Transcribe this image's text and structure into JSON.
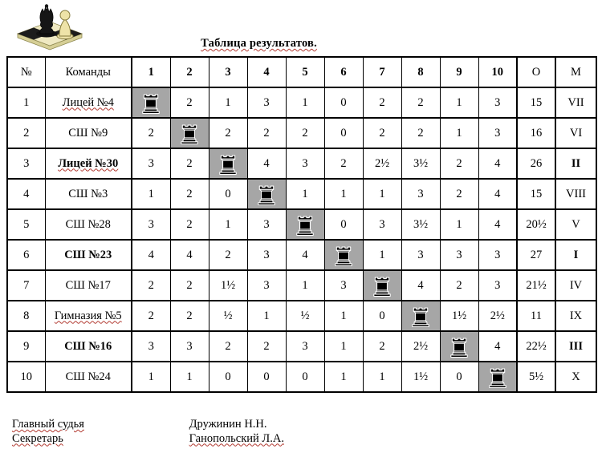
{
  "title": "Таблица результатов.",
  "logo": {
    "description": "chessboard with black king and white pawn"
  },
  "table": {
    "headers": {
      "num": "№",
      "team": "Команды",
      "rounds": [
        "1",
        "2",
        "3",
        "4",
        "5",
        "6",
        "7",
        "8",
        "9",
        "10"
      ],
      "points": "О",
      "place": "М"
    },
    "rows": [
      {
        "num": "1",
        "team": "Лицей №4",
        "misspelled": true,
        "bold": false,
        "results": [
          null,
          "2",
          "1",
          "3",
          "1",
          "0",
          "2",
          "2",
          "1",
          "3"
        ],
        "points": "15",
        "place": "VII"
      },
      {
        "num": "2",
        "team": "СШ №9",
        "misspelled": false,
        "bold": false,
        "results": [
          "2",
          null,
          "2",
          "2",
          "2",
          "0",
          "2",
          "2",
          "1",
          "3"
        ],
        "points": "16",
        "place": "VI"
      },
      {
        "num": "3",
        "team": "Лицей №30",
        "misspelled": true,
        "bold": true,
        "results": [
          "3",
          "2",
          null,
          "4",
          "3",
          "2",
          "2½",
          "3½",
          "2",
          "4"
        ],
        "points": "26",
        "place": "II"
      },
      {
        "num": "4",
        "team": "СШ №3",
        "misspelled": false,
        "bold": false,
        "results": [
          "1",
          "2",
          "0",
          null,
          "1",
          "1",
          "1",
          "3",
          "2",
          "4"
        ],
        "points": "15",
        "place": "VIII"
      },
      {
        "num": "5",
        "team": "СШ №28",
        "misspelled": false,
        "bold": false,
        "results": [
          "3",
          "2",
          "1",
          "3",
          null,
          "0",
          "3",
          "3½",
          "1",
          "4"
        ],
        "points": "20½",
        "place": "V"
      },
      {
        "num": "6",
        "team": "СШ №23",
        "misspelled": false,
        "bold": true,
        "results": [
          "4",
          "4",
          "2",
          "3",
          "4",
          null,
          "1",
          "3",
          "3",
          "3"
        ],
        "points": "27",
        "place": "I"
      },
      {
        "num": "7",
        "team": "СШ №17",
        "misspelled": false,
        "bold": false,
        "results": [
          "2",
          "2",
          "1½",
          "3",
          "1",
          "3",
          null,
          "4",
          "2",
          "3"
        ],
        "points": "21½",
        "place": "IV"
      },
      {
        "num": "8",
        "team": "Гимназия №5",
        "misspelled": true,
        "bold": false,
        "results": [
          "2",
          "2",
          "½",
          "1",
          "½",
          "1",
          "0",
          null,
          "1½",
          "2½"
        ],
        "points": "11",
        "place": "IX"
      },
      {
        "num": "9",
        "team": "СШ №16",
        "misspelled": false,
        "bold": true,
        "results": [
          "3",
          "3",
          "2",
          "2",
          "3",
          "1",
          "2",
          "2½",
          null,
          "4"
        ],
        "points": "22½",
        "place": "III"
      },
      {
        "num": "10",
        "team": "СШ №24",
        "misspelled": false,
        "bold": false,
        "results": [
          "1",
          "1",
          "0",
          "0",
          "0",
          "1",
          "1",
          "1½",
          "0",
          null
        ],
        "points": "5½",
        "place": "X"
      }
    ],
    "diagonal_icon": "black-rook"
  },
  "footer": {
    "chief_label": "Главный судья",
    "chief_name": "Дружинин Н.Н.",
    "secretary_label": "Секретарь",
    "secretary_name": "Ганопольский Л.А."
  },
  "colors": {
    "diagonal_cell_bg": "#a6a6a6",
    "squiggle": "#b23b32",
    "border": "#000000",
    "background": "#ffffff"
  }
}
